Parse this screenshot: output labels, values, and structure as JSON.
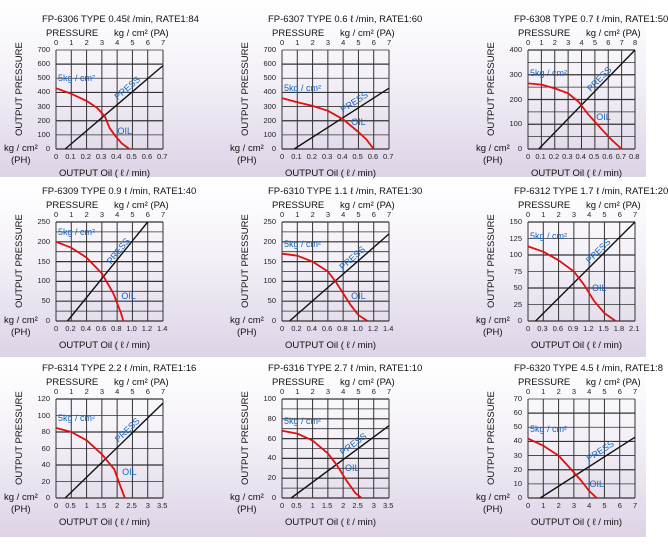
{
  "common": {
    "pressure_label": "PRESSURE",
    "pa_unit": "kg / cm² (PA)",
    "y_label": "OUTPUT PRESSURE",
    "ph_unit_1": "kg / cm²",
    "ph_unit_2": "(PH)",
    "x_label": "OUTPUT Oil  ( ℓ / min)",
    "input_label": "5kg / cm²",
    "press_label": "PRESS",
    "oil_label": "OIL"
  },
  "colors": {
    "press": "#111111",
    "oil": "#e01010",
    "grid": "#333333",
    "annotation": "#1565c0"
  },
  "chart_data": [
    {
      "type": "line",
      "title": "FP-6306 TYPE  0.45ℓ /min, RATE1:84",
      "top_ticks": [
        "0",
        "1",
        "2",
        "3",
        "4",
        "5",
        "6",
        "7"
      ],
      "xlim": [
        0,
        0.7
      ],
      "x_ticks": [
        "0",
        "0.1",
        "0.2",
        "0.3",
        "0.4",
        "0.5",
        "0.6",
        "0.7"
      ],
      "ylim": [
        0,
        700
      ],
      "y_ticks": [
        "0",
        "100",
        "200",
        "300",
        "400",
        "500",
        "600",
        "700"
      ],
      "grid_y_step": 100,
      "series": [
        {
          "name": "PRESS",
          "points": [
            [
              0.06,
              0
            ],
            [
              0.7,
              590
            ]
          ]
        },
        {
          "name": "OIL",
          "points": [
            [
              0,
              430
            ],
            [
              0.1,
              390
            ],
            [
              0.2,
              340
            ],
            [
              0.27,
              290
            ],
            [
              0.32,
              230
            ],
            [
              0.35,
              150
            ],
            [
              0.39,
              90
            ],
            [
              0.43,
              40
            ],
            [
              0.48,
              0
            ]
          ]
        }
      ]
    },
    {
      "type": "line",
      "title": "FP-6307 TYPE   0.6 ℓ /min, RATE1:60",
      "top_ticks": [
        "0",
        "1",
        "2",
        "3",
        "4",
        "5",
        "6",
        "7"
      ],
      "xlim": [
        0,
        0.7
      ],
      "x_ticks": [
        "0",
        "0.1",
        "0.2",
        "0.3",
        "0.4",
        "0.5",
        "0.6",
        "0.7"
      ],
      "ylim": [
        0,
        700
      ],
      "y_ticks": [
        "0",
        "100",
        "200",
        "300",
        "400",
        "500",
        "600",
        "700"
      ],
      "grid_y_step": 100,
      "series": [
        {
          "name": "PRESS",
          "points": [
            [
              0.08,
              0
            ],
            [
              0.7,
              430
            ]
          ]
        },
        {
          "name": "OIL",
          "points": [
            [
              0,
              360
            ],
            [
              0.1,
              330
            ],
            [
              0.2,
              305
            ],
            [
              0.3,
              270
            ],
            [
              0.4,
              210
            ],
            [
              0.5,
              120
            ],
            [
              0.55,
              70
            ],
            [
              0.6,
              0
            ]
          ]
        }
      ]
    },
    {
      "type": "line",
      "title": "FP-6308 TYPE   0.7 ℓ /min, RATE1:50",
      "top_ticks": [
        "0",
        "1",
        "2",
        "3",
        "4",
        "5",
        "6",
        "7",
        "8"
      ],
      "xlim": [
        0,
        0.8
      ],
      "x_ticks": [
        "0",
        "0.1",
        "0.2",
        "0.3",
        "0.4",
        "0.5",
        "0.6",
        "0.7",
        "0.8"
      ],
      "ylim": [
        0,
        400
      ],
      "y_ticks": [
        "0",
        "100",
        "200",
        "300",
        "400"
      ],
      "grid_y_step": 50,
      "series": [
        {
          "name": "PRESS",
          "points": [
            [
              0.08,
              0
            ],
            [
              0.8,
              400
            ]
          ]
        },
        {
          "name": "OIL",
          "points": [
            [
              0,
              265
            ],
            [
              0.1,
              260
            ],
            [
              0.2,
              245
            ],
            [
              0.3,
              225
            ],
            [
              0.38,
              190
            ],
            [
              0.45,
              140
            ],
            [
              0.55,
              80
            ],
            [
              0.62,
              40
            ],
            [
              0.7,
              0
            ]
          ]
        }
      ]
    },
    {
      "type": "line",
      "title": "FP-6309 TYPE  0.9 ℓ /min, RATE1:40",
      "top_ticks": [
        "0",
        "1",
        "2",
        "3",
        "4",
        "5",
        "6",
        "7"
      ],
      "xlim": [
        0,
        1.4
      ],
      "x_ticks": [
        "0",
        "0.2",
        "0.4",
        "0.6",
        "0.8",
        "1.0",
        "1.2",
        "1.4"
      ],
      "ylim": [
        0,
        250
      ],
      "y_ticks": [
        "0",
        "50",
        "100",
        "150",
        "200",
        "250"
      ],
      "grid_y_step": 25,
      "series": [
        {
          "name": "PRESS",
          "points": [
            [
              0.15,
              0
            ],
            [
              1.2,
              250
            ]
          ]
        },
        {
          "name": "OIL",
          "points": [
            [
              0,
              200
            ],
            [
              0.2,
              185
            ],
            [
              0.4,
              160
            ],
            [
              0.6,
              120
            ],
            [
              0.75,
              70
            ],
            [
              0.85,
              20
            ],
            [
              0.88,
              0
            ]
          ]
        }
      ]
    },
    {
      "type": "line",
      "title": "FP-6310 TYPE    1.1 ℓ /min, RATE1:30",
      "top_ticks": [
        "0",
        "1",
        "2",
        "3",
        "4",
        "5",
        "6",
        "7"
      ],
      "xlim": [
        0,
        1.4
      ],
      "x_ticks": [
        "0",
        "0.2",
        "0.4",
        "0.6",
        "0.8",
        "1.0",
        "1.2",
        "1.4"
      ],
      "ylim": [
        0,
        250
      ],
      "y_ticks": [
        "0",
        "50",
        "100",
        "150",
        "200",
        "250"
      ],
      "grid_y_step": 25,
      "series": [
        {
          "name": "PRESS",
          "points": [
            [
              0.1,
              0
            ],
            [
              1.4,
              220
            ]
          ]
        },
        {
          "name": "OIL",
          "points": [
            [
              0,
              170
            ],
            [
              0.2,
              165
            ],
            [
              0.4,
              150
            ],
            [
              0.6,
              125
            ],
            [
              0.7,
              100
            ],
            [
              0.8,
              70
            ],
            [
              0.9,
              40
            ],
            [
              1.0,
              15
            ],
            [
              1.12,
              0
            ]
          ]
        }
      ]
    },
    {
      "type": "line",
      "title": "FP-6312 TYPE    1.7 ℓ /min, RATE1:20",
      "top_ticks": [
        "0",
        "1",
        "2",
        "3",
        "4",
        "5",
        "6",
        "7"
      ],
      "xlim": [
        0,
        2.1
      ],
      "x_ticks": [
        "0",
        "0.3",
        "0.6",
        "0.9",
        "1.2",
        "1.5",
        "1.8",
        "2.1"
      ],
      "ylim": [
        0,
        150
      ],
      "y_ticks": [
        "0",
        "25",
        "50",
        "75",
        "100",
        "125",
        "150"
      ],
      "grid_y_step": 25,
      "series": [
        {
          "name": "PRESS",
          "points": [
            [
              0.15,
              0
            ],
            [
              2.1,
              150
            ]
          ]
        },
        {
          "name": "OIL",
          "points": [
            [
              0,
              113
            ],
            [
              0.3,
              105
            ],
            [
              0.6,
              92
            ],
            [
              0.9,
              75
            ],
            [
              1.1,
              55
            ],
            [
              1.3,
              30
            ],
            [
              1.5,
              12
            ],
            [
              1.72,
              0
            ]
          ]
        }
      ]
    },
    {
      "type": "line",
      "title": "FP-6314 TYPE  2.2 ℓ /min, RATE1:16",
      "top_ticks": [
        "0",
        "1",
        "2",
        "3",
        "4",
        "5",
        "6",
        "7"
      ],
      "xlim": [
        0,
        3.5
      ],
      "x_ticks": [
        "0",
        "0.5",
        "1",
        "1.5",
        "2",
        "2.5",
        "3",
        "3.5"
      ],
      "ylim": [
        0,
        120
      ],
      "y_ticks": [
        "0",
        "20",
        "40",
        "60",
        "80",
        "100",
        "120"
      ],
      "grid_y_step": 20,
      "series": [
        {
          "name": "PRESS",
          "points": [
            [
              0.3,
              0
            ],
            [
              3.5,
              115
            ]
          ]
        },
        {
          "name": "OIL",
          "points": [
            [
              0,
              85
            ],
            [
              0.5,
              80
            ],
            [
              1,
              70
            ],
            [
              1.5,
              53
            ],
            [
              1.9,
              35
            ],
            [
              2.1,
              15
            ],
            [
              2.25,
              0
            ]
          ]
        }
      ]
    },
    {
      "type": "line",
      "title": "FP-6316 TYPE   2.7 ℓ /min, RATE1:10",
      "top_ticks": [
        "0",
        "1",
        "2",
        "3",
        "4",
        "5",
        "6",
        "7"
      ],
      "xlim": [
        0,
        3.5
      ],
      "x_ticks": [
        "0",
        "0.5",
        "1",
        "1.5",
        "2",
        "2.5",
        "3",
        "3.5"
      ],
      "ylim": [
        0,
        100
      ],
      "y_ticks": [
        "0",
        "20",
        "40",
        "60",
        "80",
        "100"
      ],
      "grid_y_step": 10,
      "series": [
        {
          "name": "PRESS",
          "points": [
            [
              0.3,
              0
            ],
            [
              3.5,
              73
            ]
          ]
        },
        {
          "name": "OIL",
          "points": [
            [
              0,
              68
            ],
            [
              0.5,
              65
            ],
            [
              1,
              58
            ],
            [
              1.5,
              45
            ],
            [
              1.8,
              33
            ],
            [
              2.1,
              18
            ],
            [
              2.4,
              5
            ],
            [
              2.6,
              0
            ]
          ]
        }
      ]
    },
    {
      "type": "line",
      "title": "FP-6320 TYPE   4.5 ℓ /min, RATE1:8",
      "top_ticks": [
        "0",
        "1",
        "2",
        "3",
        "4",
        "5",
        "6",
        "7"
      ],
      "xlim": [
        0,
        7
      ],
      "x_ticks": [
        "0",
        "1",
        "2",
        "3",
        "4",
        "5",
        "6",
        "7"
      ],
      "ylim": [
        0,
        70
      ],
      "y_ticks": [
        "0",
        "10",
        "20",
        "30",
        "40",
        "50",
        "60",
        "70"
      ],
      "grid_y_step": 10,
      "series": [
        {
          "name": "PRESS",
          "points": [
            [
              0.8,
              0
            ],
            [
              7,
              43
            ]
          ]
        },
        {
          "name": "OIL",
          "points": [
            [
              0,
              42
            ],
            [
              1,
              37
            ],
            [
              2,
              30
            ],
            [
              3,
              18
            ],
            [
              3.5,
              12
            ],
            [
              4,
              5
            ],
            [
              4.5,
              0
            ]
          ]
        }
      ]
    }
  ]
}
